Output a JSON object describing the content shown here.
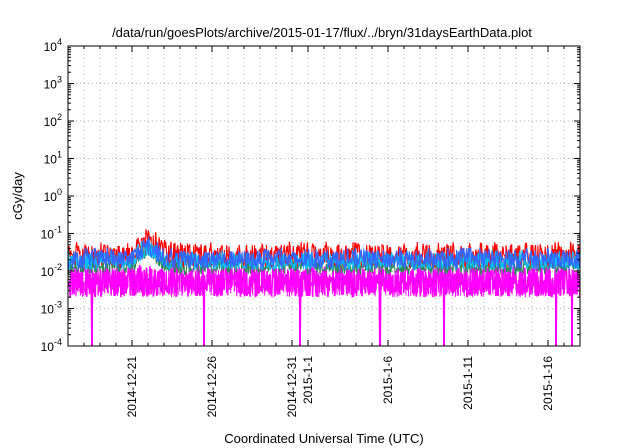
{
  "chart_data": {
    "type": "line",
    "title": "/data/run/goesPlots/archive/2015-01-17/flux/../bryn/31daysEarthData.plot",
    "xlabel": "Coordinated Universal Time (UTC)",
    "ylabel": "cGy/day",
    "yscale": "log",
    "ylim": [
      0.0001,
      10000
    ],
    "xlim": [
      "2014-12-17",
      "2015-01-18"
    ],
    "grid": true,
    "x_ticks": [
      {
        "date": "2014-12-21",
        "label": "2014-12-21"
      },
      {
        "date": "2014-12-26",
        "label": "2014-12-26"
      },
      {
        "date": "2014-12-31",
        "label": "2014-12-31"
      },
      {
        "date": "2015-01-01",
        "label": "2015-1-1"
      },
      {
        "date": "2015-01-06",
        "label": "2015-1-6"
      },
      {
        "date": "2015-01-11",
        "label": "2015-1-11"
      },
      {
        "date": "2015-01-16",
        "label": "2015-1-16"
      }
    ],
    "y_ticks": [
      {
        "value": 0.0001,
        "base": "10",
        "exp": "-4"
      },
      {
        "value": 0.001,
        "base": "10",
        "exp": "-3"
      },
      {
        "value": 0.01,
        "base": "10",
        "exp": "-2"
      },
      {
        "value": 0.1,
        "base": "10",
        "exp": "-1"
      },
      {
        "value": 1,
        "base": "10",
        "exp": "0"
      },
      {
        "value": 10,
        "base": "10",
        "exp": "1"
      },
      {
        "value": 100,
        "base": "10",
        "exp": "2"
      },
      {
        "value": 1000,
        "base": "10",
        "exp": "3"
      },
      {
        "value": 10000,
        "base": "10",
        "exp": "4"
      }
    ],
    "series": [
      {
        "color": "#ff00ff",
        "low": 0.002,
        "typical": 0.005,
        "high": 0.012
      },
      {
        "color": "#2e8b57",
        "low": 0.008,
        "typical": 0.013,
        "high": 0.02
      },
      {
        "color": "#ff0000",
        "low": 0.015,
        "typical": 0.025,
        "high": 0.05
      },
      {
        "color": "#00bfff",
        "low": 0.012,
        "typical": 0.018,
        "high": 0.03
      },
      {
        "color": "#3366ff",
        "low": 0.012,
        "typical": 0.02,
        "high": 0.035
      }
    ],
    "features": {
      "peak": {
        "date": "2014-12-22",
        "value": 0.13
      },
      "dropouts": [
        "2014-12-18",
        "2014-12-25",
        "2014-12-31",
        "2015-01-05",
        "2015-01-09",
        "2015-01-16",
        "2015-01-17"
      ]
    }
  }
}
